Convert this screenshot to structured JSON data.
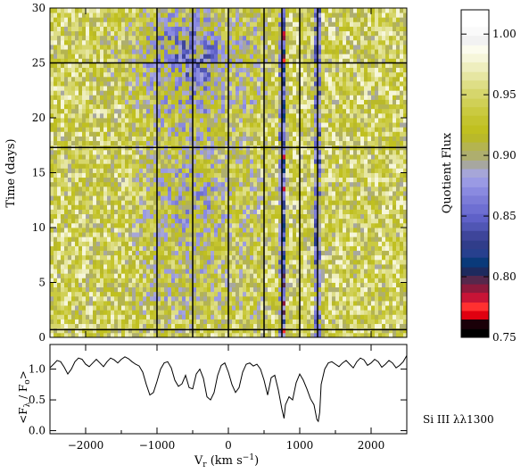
{
  "chart_data": [
    {
      "type": "heatmap",
      "xlabel_main": "V",
      "xlabel_sub": "r",
      "xlabel_unit_pre": " (km s",
      "xlabel_unit_sup": "−1",
      "xlabel_unit_post": ")",
      "ylabel": "Time (days)",
      "xlim": [
        -2500,
        2500
      ],
      "ylim": [
        0,
        30
      ],
      "yticks": [
        "0",
        "5",
        "10",
        "15",
        "20",
        "25",
        "30"
      ],
      "ytick_values": [
        0,
        5,
        10,
        15,
        20,
        25,
        30
      ],
      "xticks": [
        "−2000",
        "−1000",
        "0",
        "1000",
        "2000"
      ],
      "xtick_values": [
        -2000,
        -1000,
        0,
        1000,
        2000
      ],
      "vertical_lines_x": [
        -1000,
        -500,
        0,
        500,
        750,
        1000,
        1250
      ],
      "horizontal_lines_y": [
        0.7,
        17.3,
        25.0
      ],
      "colorbar": {
        "label": "Quotient Flux",
        "range": [
          0.75,
          1.02
        ],
        "tick_values": [
          0.75,
          0.8,
          0.85,
          0.9,
          0.95,
          1.0
        ],
        "tick_labels": [
          "0.75",
          "0.80",
          "0.85",
          "0.90",
          "0.95",
          "1.00"
        ],
        "colors": [
          {
            "v": 0.75,
            "c": "#000000"
          },
          {
            "v": 0.757,
            "c": "#1a0008"
          },
          {
            "v": 0.765,
            "c": "#e00010"
          },
          {
            "v": 0.772,
            "c": "#ff3030"
          },
          {
            "v": 0.779,
            "c": "#c81436"
          },
          {
            "v": 0.787,
            "c": "#8c1a3c"
          },
          {
            "v": 0.794,
            "c": "#56284c"
          },
          {
            "v": 0.801,
            "c": "#1e2a5e"
          },
          {
            "v": 0.808,
            "c": "#0a3a7a"
          },
          {
            "v": 0.816,
            "c": "#27408e"
          },
          {
            "v": 0.823,
            "c": "#303d8a"
          },
          {
            "v": 0.83,
            "c": "#3e459a"
          },
          {
            "v": 0.838,
            "c": "#5056b4"
          },
          {
            "v": 0.845,
            "c": "#5f61c8"
          },
          {
            "v": 0.852,
            "c": "#6e6fd2"
          },
          {
            "v": 0.86,
            "c": "#7c7cd8"
          },
          {
            "v": 0.867,
            "c": "#8a8ae0"
          },
          {
            "v": 0.874,
            "c": "#9a9ae4"
          },
          {
            "v": 0.882,
            "c": "#a6a6d8"
          },
          {
            "v": 0.889,
            "c": "#a7a7a0"
          },
          {
            "v": 0.896,
            "c": "#aeae6e"
          },
          {
            "v": 0.904,
            "c": "#b4b450"
          },
          {
            "v": 0.911,
            "c": "#b9b92a"
          },
          {
            "v": 0.918,
            "c": "#c0c020"
          },
          {
            "v": 0.925,
            "c": "#c4c42e"
          },
          {
            "v": 0.933,
            "c": "#caca40"
          },
          {
            "v": 0.94,
            "c": "#d0d056"
          },
          {
            "v": 0.947,
            "c": "#d6d66c"
          },
          {
            "v": 0.955,
            "c": "#dede86"
          },
          {
            "v": 0.962,
            "c": "#e6e6a2"
          },
          {
            "v": 0.969,
            "c": "#eeeebe"
          },
          {
            "v": 0.977,
            "c": "#f6f6da"
          },
          {
            "v": 0.984,
            "c": "#fcfcee"
          },
          {
            "v": 0.991,
            "c": "#f2f2f2"
          },
          {
            "v": 0.999,
            "c": "#fafafa"
          },
          {
            "v": 1.006,
            "c": "#ffffff"
          },
          {
            "v": 1.013,
            "c": "#ffffff"
          }
        ]
      }
    },
    {
      "type": "line",
      "ylabel_text": "<F / F >",
      "ylabel_sub1": "λ",
      "ylabel_sub2": "o",
      "annotation": "Si III λλ1300",
      "xlim": [
        -2500,
        2500
      ],
      "ylim": [
        -0.05,
        1.4
      ],
      "yticks": [
        "0.0",
        "0.5",
        "1.0"
      ],
      "ytick_values": [
        0.0,
        0.5,
        1.0
      ],
      "x": [
        -2500,
        -2450,
        -2400,
        -2350,
        -2300,
        -2250,
        -2200,
        -2150,
        -2100,
        -2050,
        -2000,
        -1950,
        -1900,
        -1850,
        -1800,
        -1750,
        -1700,
        -1650,
        -1600,
        -1550,
        -1500,
        -1450,
        -1400,
        -1350,
        -1300,
        -1250,
        -1200,
        -1150,
        -1100,
        -1050,
        -1000,
        -950,
        -900,
        -850,
        -800,
        -750,
        -700,
        -650,
        -600,
        -550,
        -500,
        -450,
        -400,
        -350,
        -300,
        -250,
        -200,
        -150,
        -100,
        -50,
        0,
        50,
        100,
        150,
        200,
        250,
        300,
        350,
        400,
        450,
        500,
        550,
        600,
        650,
        700,
        750,
        780,
        800,
        850,
        900,
        950,
        1000,
        1050,
        1100,
        1150,
        1200,
        1240,
        1260,
        1280,
        1300,
        1350,
        1400,
        1450,
        1500,
        1550,
        1600,
        1650,
        1700,
        1750,
        1800,
        1850,
        1900,
        1950,
        2000,
        2050,
        2100,
        2150,
        2200,
        2250,
        2300,
        2350,
        2400,
        2450,
        2500
      ],
      "y": [
        1.02,
        1.08,
        1.14,
        1.12,
        1.03,
        0.92,
        1.0,
        1.12,
        1.18,
        1.16,
        1.08,
        1.04,
        1.1,
        1.16,
        1.1,
        1.04,
        1.12,
        1.18,
        1.15,
        1.1,
        1.16,
        1.2,
        1.17,
        1.12,
        1.08,
        1.05,
        0.95,
        0.75,
        0.58,
        0.62,
        0.8,
        1.0,
        1.1,
        1.12,
        1.02,
        0.82,
        0.72,
        0.76,
        0.9,
        0.7,
        0.68,
        0.92,
        1.0,
        0.85,
        0.55,
        0.5,
        0.62,
        0.9,
        1.06,
        1.1,
        0.95,
        0.75,
        0.62,
        0.7,
        0.95,
        1.08,
        1.1,
        1.05,
        1.08,
        1.0,
        0.82,
        0.58,
        0.86,
        0.9,
        0.66,
        0.35,
        0.2,
        0.42,
        0.55,
        0.5,
        0.78,
        0.92,
        0.82,
        0.68,
        0.52,
        0.42,
        0.18,
        0.15,
        0.3,
        0.75,
        1.0,
        1.1,
        1.12,
        1.08,
        1.04,
        1.1,
        1.14,
        1.08,
        1.02,
        1.12,
        1.18,
        1.15,
        1.06,
        1.1,
        1.16,
        1.12,
        1.03,
        1.08,
        1.14,
        1.1,
        1.02,
        1.06,
        1.12,
        1.22
      ]
    }
  ]
}
